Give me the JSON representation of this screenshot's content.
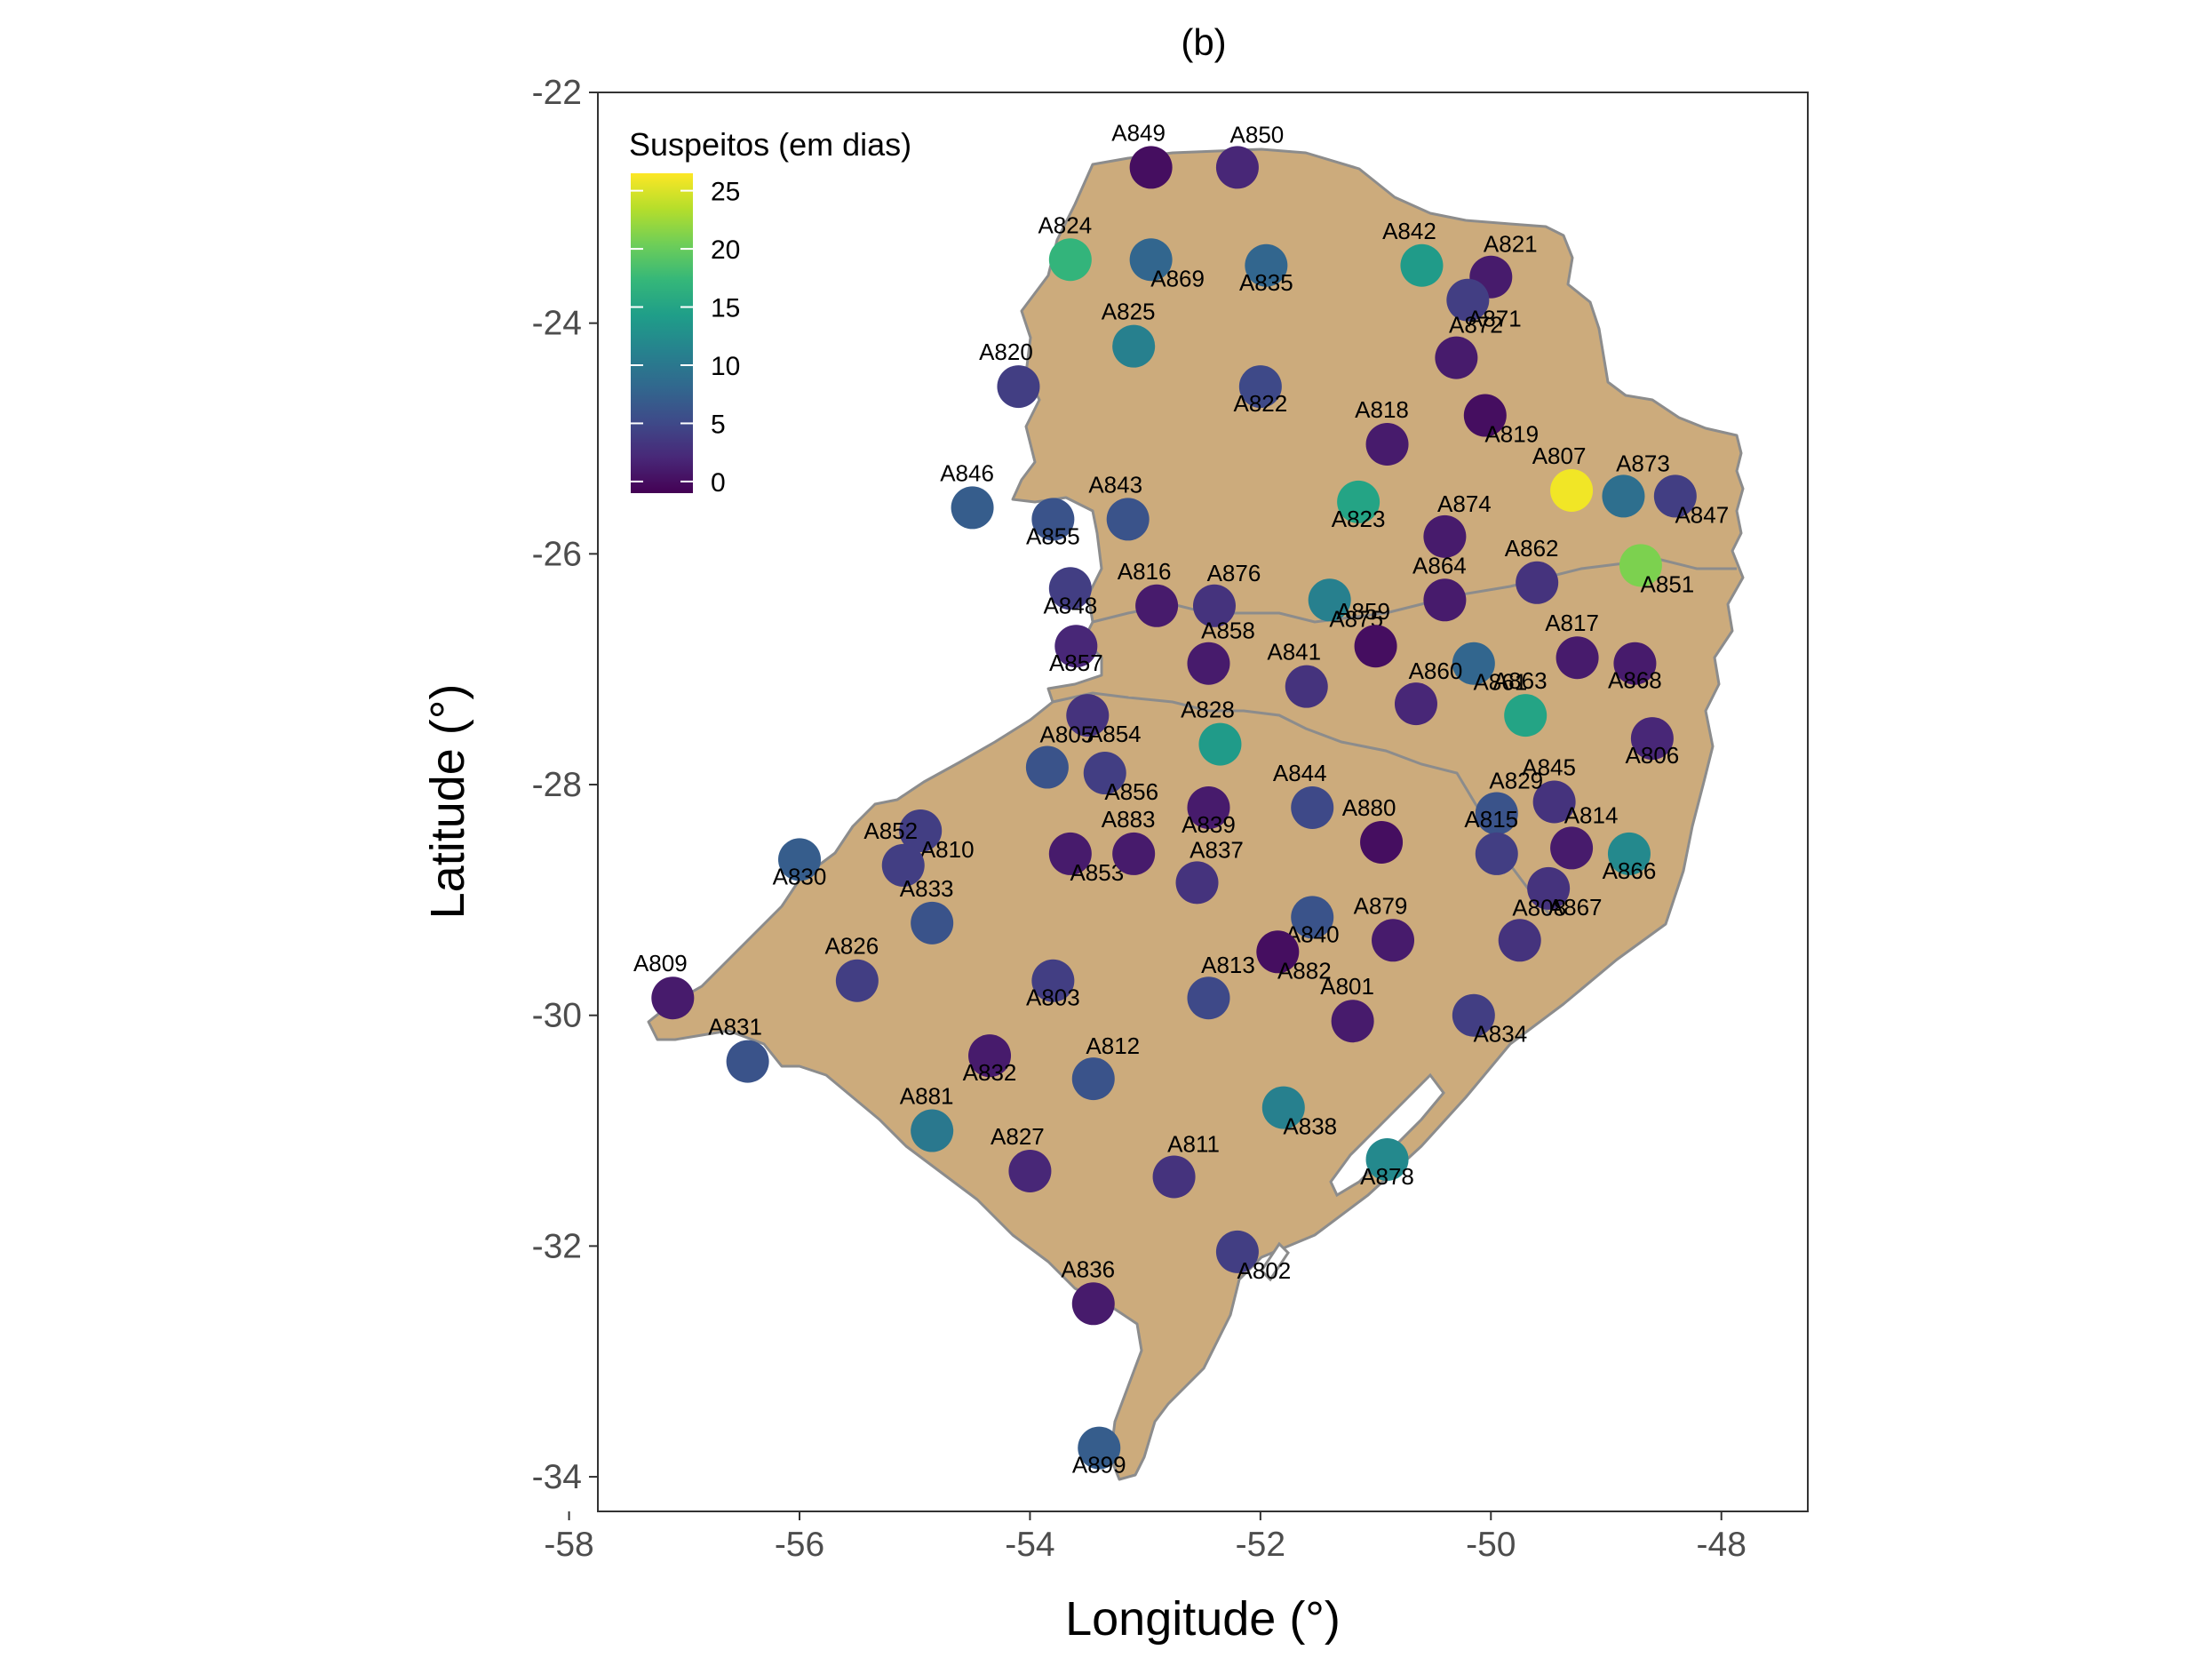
{
  "title": "(b)",
  "colors": {
    "land": "#ccab7c",
    "border": "#8c8c8c",
    "viridis": [
      "#440154",
      "#482878",
      "#3e4a89",
      "#31688e",
      "#26828e",
      "#1f9e89",
      "#35b779",
      "#6ece58",
      "#b5de2b",
      "#fde725"
    ]
  },
  "chart_data": {
    "type": "scatter",
    "title": "(b)",
    "xlabel": "Longitude  (°)",
    "ylabel": "Latitude  (°)",
    "xlim": [
      -57.75,
      -47.25
    ],
    "ylim": [
      -34.3,
      -22.0
    ],
    "x_ticks": [
      -58,
      -56,
      -54,
      -52,
      -50,
      -48
    ],
    "y_ticks": [
      -22,
      -24,
      -26,
      -28,
      -30,
      -32,
      -34
    ],
    "x_tick_labels": [
      "-58",
      "-56",
      "-54",
      "-52",
      "-50",
      "-48"
    ],
    "y_tick_labels": [
      "-22",
      "-24",
      "-26",
      "-28",
      "-30",
      "-32",
      "-34"
    ],
    "grid": false,
    "legend": {
      "title": "Suspeitos (em dias)",
      "placement": "top-left",
      "min": -1,
      "max": 26.5,
      "ticks": [
        25,
        20,
        15,
        10,
        5,
        0
      ],
      "tick_labels": [
        "25",
        "20",
        "15",
        "10",
        "5",
        "0"
      ]
    },
    "points": [
      {
        "name": "A849",
        "lon": -52.95,
        "lat": -22.65,
        "value": 0
      },
      {
        "name": "A850",
        "lon": -52.2,
        "lat": -22.65,
        "value": 2
      },
      {
        "name": "A869",
        "lon": -52.95,
        "lat": -23.45,
        "value": 8
      },
      {
        "name": "A824",
        "lon": -53.65,
        "lat": -23.45,
        "value": 17
      },
      {
        "name": "A835",
        "lon": -51.95,
        "lat": -23.5,
        "value": 8
      },
      {
        "name": "A842",
        "lon": -50.6,
        "lat": -23.5,
        "value": 14
      },
      {
        "name": "A821",
        "lon": -50.0,
        "lat": -23.6,
        "value": 1
      },
      {
        "name": "A871",
        "lon": -50.2,
        "lat": -23.8,
        "value": 4
      },
      {
        "name": "A825",
        "lon": -53.1,
        "lat": -24.2,
        "value": 11
      },
      {
        "name": "A822",
        "lon": -52.0,
        "lat": -24.55,
        "value": 5
      },
      {
        "name": "A820",
        "lon": -54.1,
        "lat": -24.55,
        "value": 4
      },
      {
        "name": "A872",
        "lon": -50.3,
        "lat": -24.3,
        "value": 1
      },
      {
        "name": "A819",
        "lon": -50.05,
        "lat": -24.8,
        "value": 0
      },
      {
        "name": "A818",
        "lon": -50.9,
        "lat": -25.05,
        "value": 1
      },
      {
        "name": "A823",
        "lon": -51.15,
        "lat": -25.55,
        "value": 15
      },
      {
        "name": "A807",
        "lon": -49.3,
        "lat": -25.45,
        "value": 26
      },
      {
        "name": "A873",
        "lon": -48.85,
        "lat": -25.5,
        "value": 9
      },
      {
        "name": "A847",
        "lon": -48.4,
        "lat": -25.5,
        "value": 4
      },
      {
        "name": "A846",
        "lon": -54.5,
        "lat": -25.6,
        "value": 7
      },
      {
        "name": "A855",
        "lon": -53.8,
        "lat": -25.7,
        "value": 6
      },
      {
        "name": "A843",
        "lon": -53.15,
        "lat": -25.7,
        "value": 6
      },
      {
        "name": "A874",
        "lon": -50.4,
        "lat": -25.85,
        "value": 1
      },
      {
        "name": "A851",
        "lon": -48.7,
        "lat": -26.1,
        "value": 21
      },
      {
        "name": "A862",
        "lon": -49.6,
        "lat": -26.25,
        "value": 3
      },
      {
        "name": "A848",
        "lon": -53.65,
        "lat": -26.3,
        "value": 4
      },
      {
        "name": "A816",
        "lon": -52.9,
        "lat": -26.45,
        "value": 1
      },
      {
        "name": "A876",
        "lon": -52.4,
        "lat": -26.45,
        "value": 3
      },
      {
        "name": "A875",
        "lon": -51.4,
        "lat": -26.4,
        "value": 11
      },
      {
        "name": "A864",
        "lon": -50.4,
        "lat": -26.4,
        "value": 1
      },
      {
        "name": "A857",
        "lon": -53.6,
        "lat": -26.8,
        "value": 2
      },
      {
        "name": "A859",
        "lon": -51.0,
        "lat": -26.8,
        "value": 0
      },
      {
        "name": "A858",
        "lon": -52.45,
        "lat": -26.95,
        "value": 1
      },
      {
        "name": "A861",
        "lon": -50.15,
        "lat": -26.95,
        "value": 8
      },
      {
        "name": "A817",
        "lon": -49.25,
        "lat": -26.9,
        "value": 1
      },
      {
        "name": "A868",
        "lon": -48.75,
        "lat": -26.95,
        "value": 1
      },
      {
        "name": "A841",
        "lon": -51.6,
        "lat": -27.15,
        "value": 3
      },
      {
        "name": "A860",
        "lon": -50.65,
        "lat": -27.3,
        "value": 2
      },
      {
        "name": "A854",
        "lon": -53.5,
        "lat": -27.4,
        "value": 3
      },
      {
        "name": "A863",
        "lon": -49.7,
        "lat": -27.4,
        "value": 15
      },
      {
        "name": "A806",
        "lon": -48.6,
        "lat": -27.6,
        "value": 2
      },
      {
        "name": "A828",
        "lon": -52.35,
        "lat": -27.65,
        "value": 14
      },
      {
        "name": "A805",
        "lon": -53.85,
        "lat": -27.85,
        "value": 6
      },
      {
        "name": "A856",
        "lon": -53.35,
        "lat": -27.9,
        "value": 4
      },
      {
        "name": "A845",
        "lon": -49.45,
        "lat": -28.15,
        "value": 3
      },
      {
        "name": "A839",
        "lon": -52.45,
        "lat": -28.2,
        "value": 1
      },
      {
        "name": "A844",
        "lon": -51.55,
        "lat": -28.2,
        "value": 5
      },
      {
        "name": "A829",
        "lon": -49.95,
        "lat": -28.25,
        "value": 6
      },
      {
        "name": "A810",
        "lon": -54.95,
        "lat": -28.4,
        "value": 4
      },
      {
        "name": "A815",
        "lon": -49.95,
        "lat": -28.6,
        "value": 4
      },
      {
        "name": "A866",
        "lon": -48.8,
        "lat": -28.6,
        "value": 12
      },
      {
        "name": "A880",
        "lon": -50.95,
        "lat": -28.5,
        "value": 0
      },
      {
        "name": "A814",
        "lon": -49.3,
        "lat": -28.55,
        "value": 1
      },
      {
        "name": "A853",
        "lon": -53.65,
        "lat": -28.6,
        "value": 1
      },
      {
        "name": "A883",
        "lon": -53.1,
        "lat": -28.6,
        "value": 1
      },
      {
        "name": "A830",
        "lon": -56.0,
        "lat": -28.65,
        "value": 7
      },
      {
        "name": "A852",
        "lon": -55.1,
        "lat": -28.7,
        "value": 4
      },
      {
        "name": "A837",
        "lon": -52.55,
        "lat": -28.85,
        "value": 3
      },
      {
        "name": "A867",
        "lon": -49.5,
        "lat": -28.9,
        "value": 3
      },
      {
        "name": "A833",
        "lon": -54.85,
        "lat": -29.2,
        "value": 6
      },
      {
        "name": "A840",
        "lon": -51.55,
        "lat": -29.15,
        "value": 6
      },
      {
        "name": "A879",
        "lon": -50.85,
        "lat": -29.35,
        "value": 1
      },
      {
        "name": "A808",
        "lon": -49.75,
        "lat": -29.35,
        "value": 3
      },
      {
        "name": "A882",
        "lon": -51.85,
        "lat": -29.45,
        "value": 0
      },
      {
        "name": "A826",
        "lon": -55.5,
        "lat": -29.7,
        "value": 4
      },
      {
        "name": "A803",
        "lon": -53.8,
        "lat": -29.7,
        "value": 4
      },
      {
        "name": "A809",
        "lon": -57.1,
        "lat": -29.85,
        "value": 1
      },
      {
        "name": "A813",
        "lon": -52.45,
        "lat": -29.85,
        "value": 5
      },
      {
        "name": "A834",
        "lon": -50.15,
        "lat": -30.0,
        "value": 4
      },
      {
        "name": "A801",
        "lon": -51.2,
        "lat": -30.05,
        "value": 1
      },
      {
        "name": "A832",
        "lon": -54.35,
        "lat": -30.35,
        "value": 1
      },
      {
        "name": "A831",
        "lon": -56.45,
        "lat": -30.4,
        "value": 6
      },
      {
        "name": "A812",
        "lon": -53.45,
        "lat": -30.55,
        "value": 6
      },
      {
        "name": "A838",
        "lon": -51.8,
        "lat": -30.8,
        "value": 11
      },
      {
        "name": "A881",
        "lon": -54.85,
        "lat": -31.0,
        "value": 10
      },
      {
        "name": "A878",
        "lon": -50.9,
        "lat": -31.25,
        "value": 12
      },
      {
        "name": "A827",
        "lon": -54.0,
        "lat": -31.35,
        "value": 2
      },
      {
        "name": "A811",
        "lon": -52.75,
        "lat": -31.4,
        "value": 3
      },
      {
        "name": "A802",
        "lon": -52.2,
        "lat": -32.05,
        "value": 4
      },
      {
        "name": "A836",
        "lon": -53.45,
        "lat": -32.5,
        "value": 1
      },
      {
        "name": "A899",
        "lon": -53.4,
        "lat": -33.75,
        "value": 7
      }
    ]
  }
}
